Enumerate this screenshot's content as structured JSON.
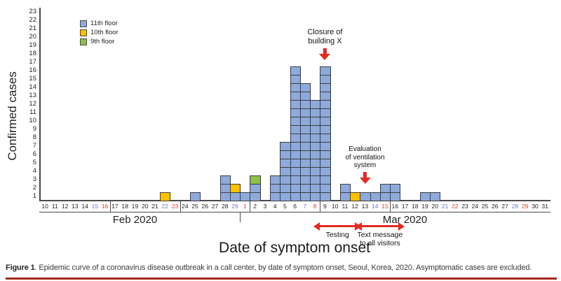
{
  "chart_data": {
    "type": "bar",
    "subtype": "stacked-unit-histogram",
    "title": "",
    "xlabel": "Date of symptom onset",
    "ylabel": "Confirmed cases",
    "ylim": [
      0,
      23
    ],
    "grid": false,
    "legend_position": "top-left-inside",
    "x_labels": [
      "10",
      "11",
      "12",
      "13",
      "14",
      "15",
      "16",
      "17",
      "18",
      "19",
      "20",
      "21",
      "22",
      "23",
      "24",
      "25",
      "26",
      "27",
      "28",
      "29",
      "1",
      "2",
      "3",
      "4",
      "5",
      "6",
      "7",
      "8",
      "9",
      "10",
      "11",
      "12",
      "13",
      "14",
      "15",
      "16",
      "17",
      "18",
      "19",
      "20",
      "21",
      "22",
      "23",
      "24",
      "25",
      "26",
      "27",
      "28",
      "29",
      "30",
      "31"
    ],
    "months": [
      {
        "label": "Feb 2020",
        "center_day_index": 9
      },
      {
        "label": "Mar 2020",
        "center_day_index": 36
      }
    ],
    "saturday_indices": [
      5,
      12,
      19,
      26,
      33,
      40,
      47
    ],
    "sunday_indices": [
      6,
      13,
      20,
      27,
      34,
      41,
      48
    ],
    "week_divider_after_indices": [
      6,
      13,
      20,
      27,
      34
    ],
    "month_boundary_after_index": 19,
    "weekend_label_colors": {
      "saturday": "#6f76cf",
      "sunday": "#e2402f"
    },
    "series": [
      {
        "name": "11th floor",
        "color": "#8EAADB",
        "values": [
          0,
          0,
          0,
          0,
          0,
          0,
          0,
          0,
          0,
          0,
          0,
          0,
          0,
          0,
          0,
          1,
          0,
          0,
          3,
          1,
          1,
          2,
          0,
          3,
          7,
          16,
          14,
          12,
          16,
          0,
          2,
          0,
          1,
          1,
          2,
          2,
          0,
          0,
          1,
          1,
          0,
          0,
          0,
          0,
          0,
          0,
          0,
          0,
          0,
          0,
          0
        ]
      },
      {
        "name": "10th floor",
        "color": "#FFC000",
        "values": [
          0,
          0,
          0,
          0,
          0,
          0,
          0,
          0,
          0,
          0,
          0,
          0,
          1,
          0,
          0,
          0,
          0,
          0,
          0,
          1,
          0,
          0,
          0,
          0,
          0,
          0,
          0,
          0,
          0,
          0,
          0,
          1,
          0,
          0,
          0,
          0,
          0,
          0,
          0,
          0,
          0,
          0,
          0,
          0,
          0,
          0,
          0,
          0,
          0,
          0,
          0
        ]
      },
      {
        "name": "9th floor",
        "color": "#8DC04B",
        "values": [
          0,
          0,
          0,
          0,
          0,
          0,
          0,
          0,
          0,
          0,
          0,
          0,
          0,
          0,
          0,
          0,
          0,
          0,
          0,
          0,
          0,
          1,
          0,
          0,
          0,
          0,
          0,
          0,
          0,
          0,
          0,
          0,
          0,
          0,
          0,
          0,
          0,
          0,
          0,
          0,
          0,
          0,
          0,
          0,
          0,
          0,
          0,
          0,
          0,
          0,
          0
        ]
      }
    ],
    "annotations": {
      "closure": {
        "lines": [
          "Closure of",
          "building X"
        ],
        "day_index": 28,
        "date": "Mar 9"
      },
      "ventilation": {
        "lines": [
          "Evaluation",
          "of ventilation",
          "system"
        ],
        "day_index": 32,
        "date": "Mar 13"
      },
      "testing": {
        "label": "Testing",
        "day_start": 27.5,
        "day_end": 31.0
      },
      "text_message": {
        "lines": [
          "Text message",
          "to all visitors"
        ],
        "day_start": 31.7,
        "day_end": 35.3
      }
    },
    "accent_red": "#e22a21"
  },
  "caption": {
    "label": "Figure 1",
    "text": ". Epidemic curve of a coronavirus disease outbreak in a call center, by date of symptom onset, Seoul, Korea, 2020. Asymptomatic cases are excluded."
  }
}
